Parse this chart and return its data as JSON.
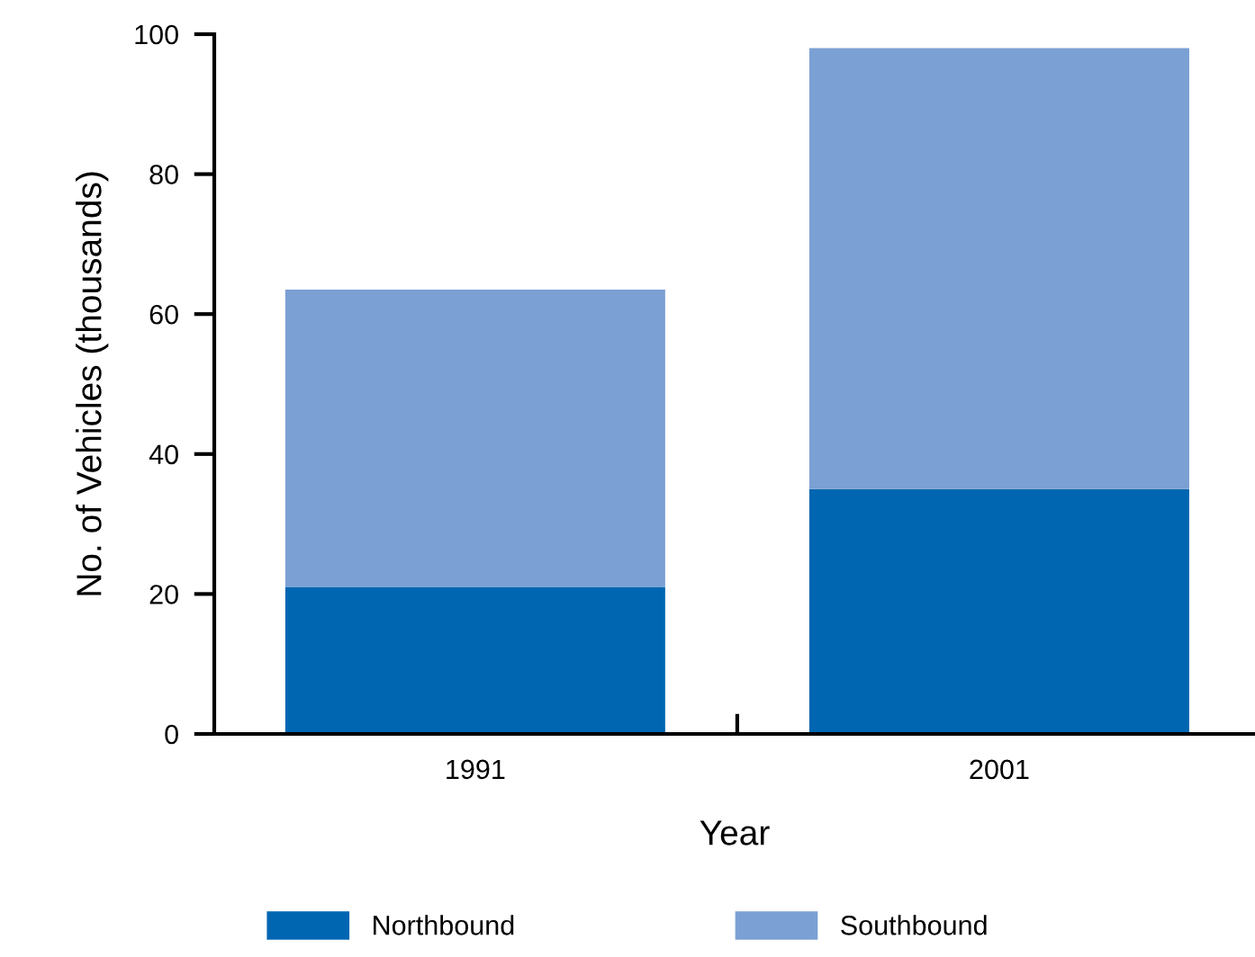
{
  "chart_data": {
    "type": "bar",
    "stacked": true,
    "xlabel": "Year",
    "ylabel": "No. of Vehicles (thousands)",
    "categories": [
      "1991",
      "2001"
    ],
    "series": [
      {
        "name": "Northbound",
        "color": "#0066b2",
        "values": [
          21,
          35
        ]
      },
      {
        "name": "Southbound",
        "color": "#7ba0d3",
        "values": [
          42.5,
          63
        ]
      }
    ],
    "ylim": [
      0,
      100
    ],
    "yticks": [
      0,
      20,
      40,
      60,
      80,
      100
    ],
    "grid": false,
    "legend": "bottom"
  }
}
